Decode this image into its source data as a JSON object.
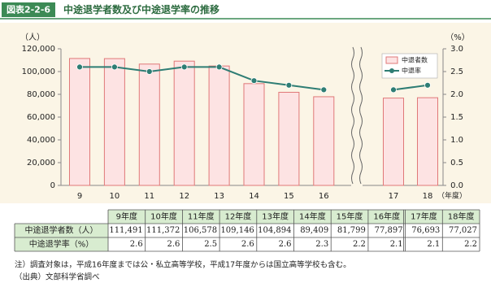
{
  "header": {
    "label": "図表2-2-6",
    "title": "中途退学者数及び中途退学率の推移"
  },
  "chart_data": {
    "type": "combo",
    "y_label": "（人）",
    "y2_label": "（%）",
    "x_label": "（年度）",
    "categories": [
      "9",
      "10",
      "11",
      "12",
      "13",
      "14",
      "15",
      "16",
      "17",
      "18"
    ],
    "series": [
      {
        "name": "中退者数",
        "type": "bar",
        "color": "#fde3e3",
        "edgecolor": "#e07878",
        "values": [
          111491,
          111372,
          106578,
          109146,
          104894,
          89409,
          81799,
          77897,
          76693,
          77027
        ],
        "value_labels": [
          "111,491",
          "111,372",
          "106,578",
          "109,146",
          "104,894",
          "89,409",
          "81,799",
          "77,897",
          "76,693",
          "77,027"
        ]
      },
      {
        "name": "中退率",
        "type": "line",
        "color": "#2e7d74",
        "axis": "y2",
        "values": [
          2.6,
          2.6,
          2.5,
          2.6,
          2.6,
          2.3,
          2.2,
          2.1,
          2.1,
          2.2
        ]
      }
    ],
    "ylim": [
      0,
      120000
    ],
    "yticks": [
      0,
      {
        "value": 20000,
        "label": "20,000"
      },
      {
        "value": 40000,
        "label": "40,000"
      },
      {
        "value": 60000,
        "label": "60,000"
      },
      {
        "value": 80000,
        "label": "80,000"
      },
      {
        "value": 100000,
        "label": "100,000"
      },
      {
        "value": 120000,
        "label": "120,000"
      }
    ],
    "y2lim": [
      0,
      3
    ],
    "y2ticks": [
      {
        "value": 0,
        "label": "0.0"
      },
      0.5,
      {
        "value": 1,
        "label": "1.0"
      },
      1.5,
      {
        "value": 2,
        "label": "2.0"
      },
      2.5,
      {
        "value": 3,
        "label": "3.0"
      }
    ],
    "legend": "upper right"
  },
  "table": {
    "columns": [
      "9年度",
      "10年度",
      "11年度",
      "12年度",
      "13年度",
      "14年度",
      "15年度",
      "16年度",
      "17年度",
      "18年度"
    ],
    "row_labels": [
      "中途退学者数（人）",
      "中途退学率（%）"
    ]
  },
  "notes": [
    "注）調査対象は，平成16年度までは公・私立高等学校，平成17年度からは国立高等学校も含む。",
    "（出典）文部科学省調べ"
  ]
}
